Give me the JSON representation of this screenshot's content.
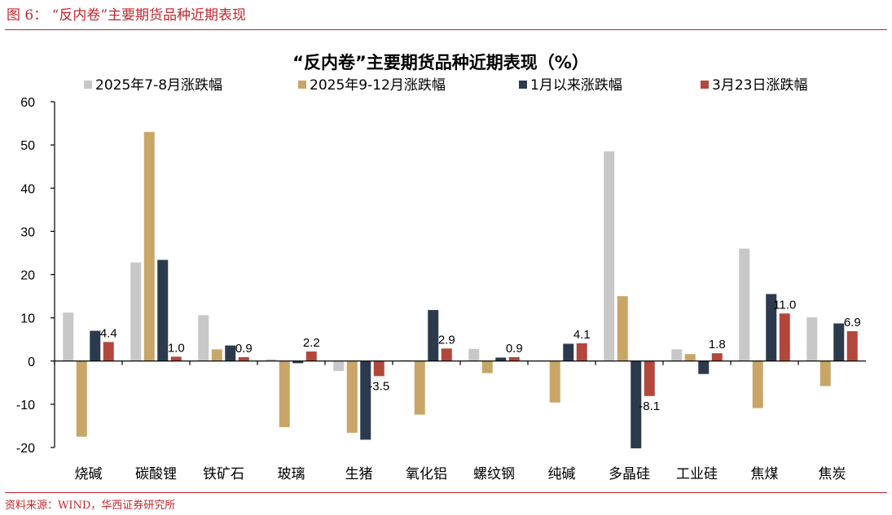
{
  "header": {
    "figure_title": "图 6：  “反内卷”主要期货品种近期表现"
  },
  "footer": {
    "source": "资料来源：WIND，华西证券研究所"
  },
  "colors": {
    "accent": "#c0272d",
    "s1": "#c8c8c8",
    "s2": "#c8a668",
    "s3": "#2c3a4e",
    "s4": "#b2473b",
    "axis": "#000000"
  },
  "chart_data": {
    "type": "bar",
    "title": "“反内卷”主要期货品种近期表现（%）",
    "xlabel": "",
    "ylabel": "",
    "ylim": [
      -20,
      60
    ],
    "yticks": [
      60,
      50,
      40,
      30,
      20,
      10,
      0,
      -10,
      -20
    ],
    "legend_position": "top",
    "grid": false,
    "categories": [
      "烧碱",
      "碳酸锂",
      "铁矿石",
      "玻璃",
      "生猪",
      "氧化铝",
      "螺纹钢",
      "纯碱",
      "多晶硅",
      "工业硅",
      "焦煤",
      "焦炭"
    ],
    "series": [
      {
        "name": "2025年7-8月涨跌幅",
        "color": "#c8c8c8",
        "values": [
          11.2,
          22.8,
          10.6,
          0.4,
          -2.3,
          0.2,
          2.8,
          0.1,
          48.5,
          2.7,
          26.0,
          10.1
        ]
      },
      {
        "name": "2025年9-12月涨跌幅",
        "color": "#c8a668",
        "values": [
          -17.5,
          53.0,
          2.7,
          -15.3,
          -16.6,
          -12.4,
          -2.8,
          -9.6,
          15.0,
          1.6,
          -10.9,
          -5.8
        ]
      },
      {
        "name": "1月以来涨跌幅",
        "color": "#2c3a4e",
        "values": [
          7.0,
          23.4,
          3.6,
          -0.5,
          -18.2,
          11.8,
          0.8,
          4.0,
          -20.2,
          -3.0,
          15.5,
          8.7
        ]
      },
      {
        "name": "3月23日涨跌幅",
        "color": "#b2473b",
        "values": [
          4.4,
          1.0,
          0.9,
          2.2,
          -3.5,
          2.9,
          0.9,
          4.1,
          -8.1,
          1.8,
          11.0,
          6.9
        ]
      }
    ],
    "data_labels": [
      "4.4",
      "1.0",
      "0.9",
      "2.2",
      "-3.5",
      "2.9",
      "0.9",
      "4.1",
      "-8.1",
      "1.8",
      "11.0",
      "6.9"
    ]
  }
}
